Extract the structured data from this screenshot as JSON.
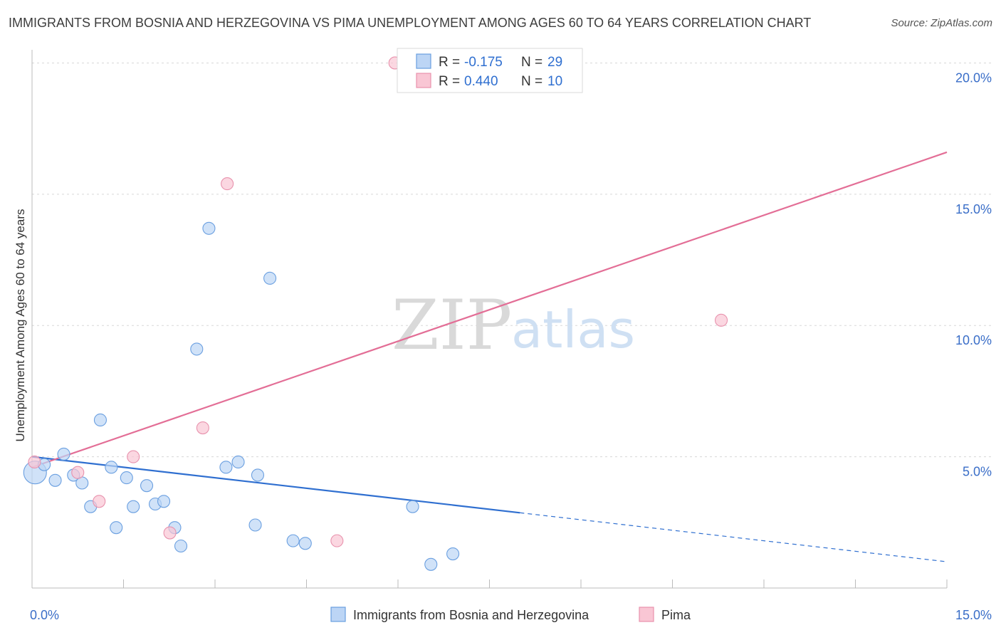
{
  "title": "IMMIGRANTS FROM BOSNIA AND HERZEGOVINA VS PIMA UNEMPLOYMENT AMONG AGES 60 TO 64 YEARS CORRELATION CHART",
  "source": "Source: ZipAtlas.com",
  "watermark": {
    "zip": "ZIP",
    "atlas": "atlas"
  },
  "colors": {
    "blue_fill": "#bcd5f5",
    "blue_stroke": "#6a9fe0",
    "blue_line": "#2f6fd0",
    "pink_fill": "#f9c6d4",
    "pink_stroke": "#e892ad",
    "pink_line": "#e36e96",
    "grid": "#d8d8d8",
    "axis": "#bbbbbb"
  },
  "legend": [
    {
      "series": "blue",
      "r_label": "R = ",
      "r_value": "-0.175",
      "n_label": "N = ",
      "n_value": "29"
    },
    {
      "series": "pink",
      "r_label": "R = ",
      "r_value": "0.440",
      "n_label": "N = ",
      "n_value": "10"
    }
  ],
  "chart_data": {
    "type": "scatter",
    "title": "IMMIGRANTS FROM BOSNIA AND HERZEGOVINA VS PIMA UNEMPLOYMENT AMONG AGES 60 TO 64 YEARS CORRELATION CHART",
    "xlabel": "",
    "ylabel": "Unemployment Among Ages 60 to 64 years",
    "xlim": [
      0,
      15
    ],
    "ylim": [
      0,
      20.5
    ],
    "x_tick_labels": [
      {
        "value": 0,
        "label": "0.0%"
      },
      {
        "value": 15,
        "label": "15.0%"
      }
    ],
    "y_tick_labels": [
      {
        "value": 5,
        "label": "5.0%"
      },
      {
        "value": 10,
        "label": "10.0%"
      },
      {
        "value": 15,
        "label": "15.0%"
      },
      {
        "value": 20,
        "label": "20.0%"
      }
    ],
    "x_minor_ticks": [
      1.5,
      3.0,
      4.5,
      6.0,
      7.5,
      9.0,
      10.5,
      12.0,
      13.5,
      15.0
    ],
    "y_gridlines": [
      5,
      10,
      15,
      20
    ],
    "legend_position": "bottom-center",
    "series": [
      {
        "name": "Immigrants from Bosnia and Herzegovina",
        "color": "blue",
        "points": [
          {
            "x": 0.05,
            "y": 4.4,
            "size": "large"
          },
          {
            "x": 0.2,
            "y": 4.7
          },
          {
            "x": 0.38,
            "y": 4.1
          },
          {
            "x": 0.52,
            "y": 5.1
          },
          {
            "x": 0.68,
            "y": 4.3
          },
          {
            "x": 0.82,
            "y": 4.0
          },
          {
            "x": 0.96,
            "y": 3.1
          },
          {
            "x": 1.12,
            "y": 6.4
          },
          {
            "x": 1.3,
            "y": 4.6
          },
          {
            "x": 1.38,
            "y": 2.3
          },
          {
            "x": 1.55,
            "y": 4.2
          },
          {
            "x": 1.66,
            "y": 3.1
          },
          {
            "x": 1.88,
            "y": 3.9
          },
          {
            "x": 2.02,
            "y": 3.2
          },
          {
            "x": 2.16,
            "y": 3.3
          },
          {
            "x": 2.34,
            "y": 2.3
          },
          {
            "x": 2.44,
            "y": 1.6
          },
          {
            "x": 2.7,
            "y": 9.1
          },
          {
            "x": 2.9,
            "y": 13.7
          },
          {
            "x": 3.18,
            "y": 4.6
          },
          {
            "x": 3.38,
            "y": 4.8
          },
          {
            "x": 3.66,
            "y": 2.4
          },
          {
            "x": 3.7,
            "y": 4.3
          },
          {
            "x": 3.9,
            "y": 11.8
          },
          {
            "x": 4.28,
            "y": 1.8
          },
          {
            "x": 4.48,
            "y": 1.7
          },
          {
            "x": 6.24,
            "y": 3.1
          },
          {
            "x": 6.54,
            "y": 0.9
          },
          {
            "x": 6.9,
            "y": 1.3
          }
        ],
        "trend": {
          "x0": 0.0,
          "y0": 5.0,
          "x_solid_end": 8.0,
          "x1": 15.0,
          "y1": 1.0
        }
      },
      {
        "name": "Pima",
        "color": "pink",
        "points": [
          {
            "x": 0.04,
            "y": 4.8
          },
          {
            "x": 0.75,
            "y": 4.4
          },
          {
            "x": 1.1,
            "y": 3.3
          },
          {
            "x": 1.66,
            "y": 5.0
          },
          {
            "x": 2.26,
            "y": 2.1
          },
          {
            "x": 2.8,
            "y": 6.1
          },
          {
            "x": 3.2,
            "y": 15.4
          },
          {
            "x": 5.0,
            "y": 1.8
          },
          {
            "x": 5.95,
            "y": 20.0
          },
          {
            "x": 11.3,
            "y": 10.2
          }
        ],
        "trend": {
          "x0": 0.0,
          "y0": 4.6,
          "x1": 15.0,
          "y1": 16.6
        }
      }
    ]
  }
}
